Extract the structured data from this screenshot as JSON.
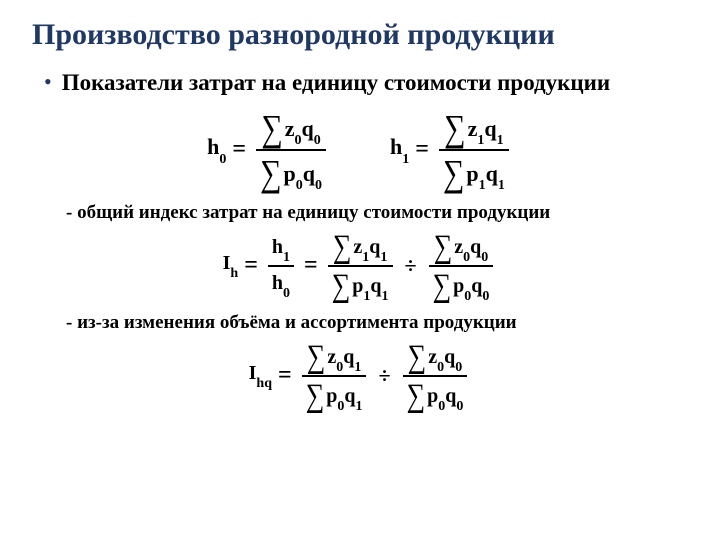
{
  "title": "Производство разнородной продукции",
  "bullet": "Показатели затрат на единицу стоимости продукции",
  "sub1": "- общий индекс затрат на единицу стоимости продукции",
  "sub2": "- из-за изменения объёма и ассортимента продукции",
  "labels": {
    "h0": "h",
    "h0_sub": "0",
    "h1": "h",
    "h1_sub": "1",
    "Ih": "I",
    "Ih_sub": "h",
    "Ihq": "I",
    "Ihq_sub": "hq",
    "eq": "=",
    "div": "÷"
  },
  "terms": {
    "z0q0": {
      "a": "z",
      "as": "0",
      "b": "q",
      "bs": "0"
    },
    "p0q0": {
      "a": "p",
      "as": "0",
      "b": "q",
      "bs": "0"
    },
    "z1q1": {
      "a": "z",
      "as": "1",
      "b": "q",
      "bs": "1"
    },
    "p1q1": {
      "a": "p",
      "as": "1",
      "b": "q",
      "bs": "1"
    },
    "z0q1": {
      "a": "z",
      "as": "0",
      "b": "q",
      "bs": "1"
    },
    "p0q1": {
      "a": "p",
      "as": "0",
      "b": "q",
      "bs": "1"
    }
  },
  "colors": {
    "title": "#1f3864",
    "text": "#000000",
    "background": "#ffffff"
  },
  "fontsize": {
    "title": 30,
    "bullet": 23,
    "subtext": 19,
    "formula": 24
  }
}
